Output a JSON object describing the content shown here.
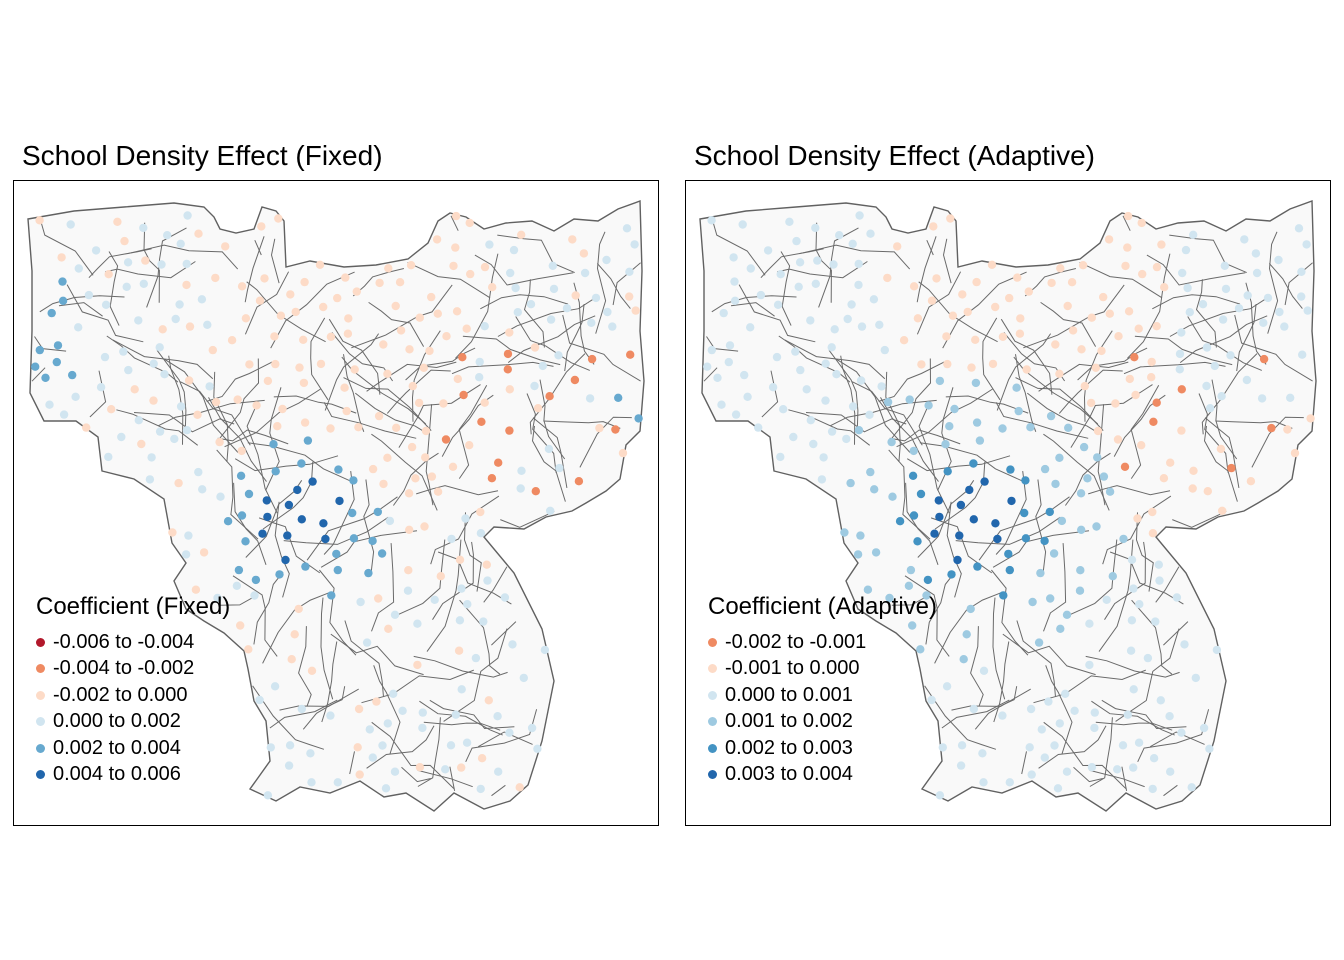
{
  "maps": [
    {
      "id": "fixed",
      "title": "School Density Effect (Fixed)",
      "legend": {
        "title": "Coefficient (Fixed)",
        "classes": [
          {
            "label": "-0.006 to -0.004",
            "color": "#b2182b"
          },
          {
            "label": "-0.004 to -0.002",
            "color": "#ef8a62"
          },
          {
            "label": "-0.002 to 0.000",
            "color": "#fddbc7"
          },
          {
            "label": "0.000 to 0.002",
            "color": "#d1e5f0"
          },
          {
            "label": "0.002 to 0.004",
            "color": "#67a9cf"
          },
          {
            "label": "0.004 to 0.006",
            "color": "#2166ac"
          }
        ]
      }
    },
    {
      "id": "adaptive",
      "title": "School Density Effect (Adaptive)",
      "legend": {
        "title": "Coefficient (Adaptive)",
        "classes": [
          {
            "label": "-0.002 to -0.001",
            "color": "#ef8a62"
          },
          {
            "label": "-0.001 to 0.000",
            "color": "#fddbc7"
          },
          {
            "label": "0.000 to 0.001",
            "color": "#d1e5f0"
          },
          {
            "label": "0.001 to 0.002",
            "color": "#9ecae1"
          },
          {
            "label": "0.002 to 0.003",
            "color": "#4393c3"
          },
          {
            "label": "0.003 to 0.004",
            "color": "#2166ac"
          }
        ]
      }
    }
  ]
}
